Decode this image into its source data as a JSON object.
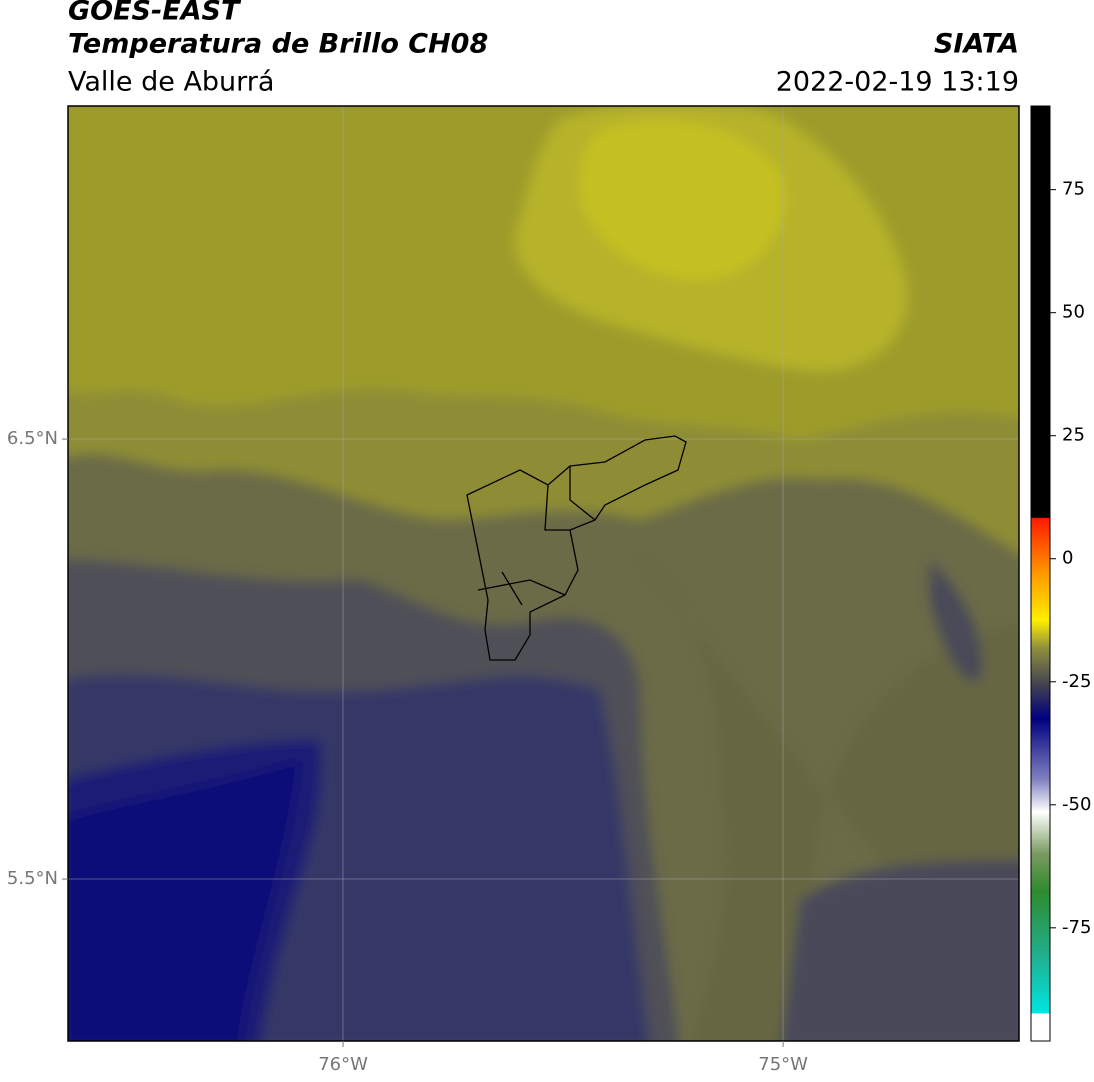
{
  "header": {
    "title": "GOES-EAST",
    "subtitle": "Temperatura de Brillo CH08",
    "region": "Valle de Aburrá",
    "source": "SIATA",
    "datetime": "2022-02-19 13:19"
  },
  "map": {
    "latlim": [
      5.132,
      7.257
    ],
    "lonlim": [
      -76.625,
      -74.464
    ],
    "yticks": [
      {
        "value": 6.5,
        "label": "6.5°N"
      },
      {
        "value": 5.5,
        "label": "5.5°N"
      }
    ],
    "xticks": [
      {
        "value": -76,
        "label": "76°W"
      },
      {
        "value": -75,
        "label": "75°W"
      }
    ]
  },
  "colorbar": {
    "lim": [
      -98,
      92
    ],
    "ticks": [
      75,
      50,
      25,
      0,
      -25,
      -50,
      -75
    ]
  }
}
